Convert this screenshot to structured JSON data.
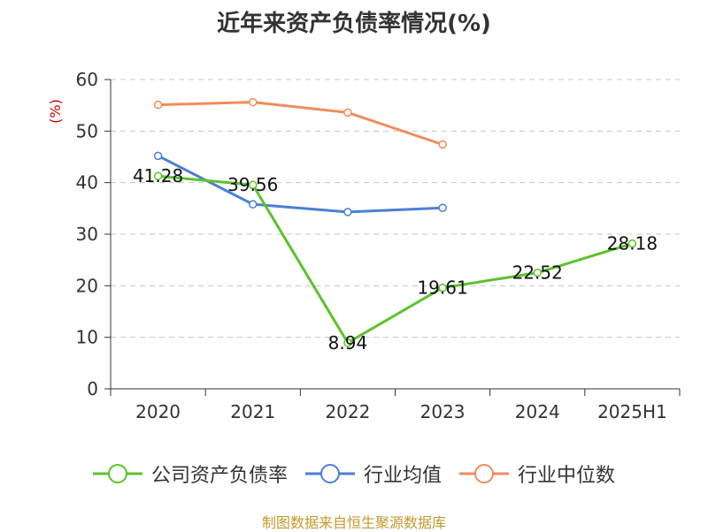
{
  "title": "近年来资产负债率情况(%)",
  "source": "制图数据来自恒生聚源数据库",
  "chart_data": {
    "type": "line",
    "title": "近年来资产负债率情况(%)",
    "ylabel": "(%)",
    "ylabel_color": "#cc0000",
    "categories": [
      "2020",
      "2021",
      "2022",
      "2023",
      "2024",
      "2025H1"
    ],
    "ylim": [
      0,
      60
    ],
    "yticks": [
      0,
      10,
      20,
      30,
      40,
      50,
      60
    ],
    "grid": true,
    "legend_position": "bottom",
    "series": [
      {
        "name": "公司资产负债率",
        "color": "#5cc22c",
        "values": [
          41.28,
          39.56,
          8.94,
          19.61,
          22.52,
          28.18
        ],
        "labels": [
          "41.28",
          "39.56",
          "8.94",
          "19.61",
          "22.52",
          "28.18"
        ]
      },
      {
        "name": "行业均值",
        "color": "#4a7fd4",
        "values": [
          45.2,
          35.8,
          34.3,
          35.1,
          null,
          null
        ]
      },
      {
        "name": "行业中位数",
        "color": "#f28c5b",
        "values": [
          55.1,
          55.6,
          53.6,
          47.4,
          null,
          null
        ]
      }
    ]
  }
}
